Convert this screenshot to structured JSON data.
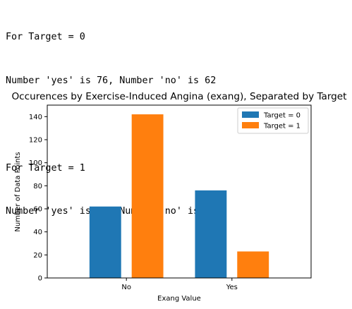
{
  "output": {
    "lines": [
      "For Target = 0",
      "Number 'yes' is 76, Number 'no' is 62",
      "",
      "For Target = 1",
      "Number 'yes' is 23, Number 'no' is 142"
    ]
  },
  "chart_data": {
    "type": "bar",
    "title": "Occurences by Exercise-Induced Angina (exang), Separated by Target",
    "xlabel": "Exang Value",
    "ylabel": "Number of Data Points",
    "categories": [
      "No",
      "Yes"
    ],
    "series": [
      {
        "name": "Target = 0",
        "values": [
          62,
          76
        ],
        "color": "#1f77b4"
      },
      {
        "name": "Target = 1",
        "values": [
          142,
          23
        ],
        "color": "#ff7f0e"
      }
    ],
    "ylim": [
      0,
      150
    ],
    "yticks": [
      0,
      20,
      40,
      60,
      80,
      100,
      120,
      140
    ],
    "legend_position": "top-right",
    "grid": false
  }
}
